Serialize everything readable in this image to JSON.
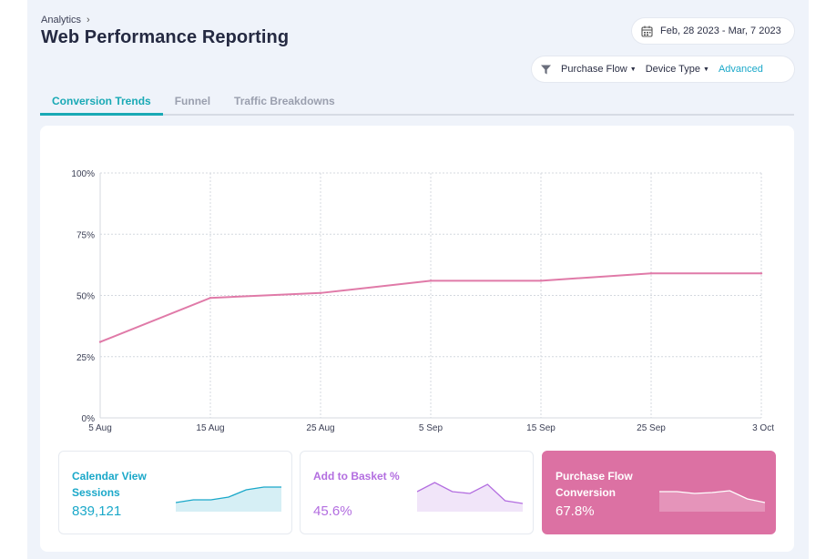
{
  "breadcrumb": {
    "section": "Analytics"
  },
  "header": {
    "title": "Web Performance Reporting"
  },
  "date_range": {
    "label": "Feb, 28 2023 - Mar, 7 2023",
    "icon": "calendar-icon"
  },
  "filters": {
    "icon": "filter-icon",
    "items": [
      {
        "label": "Purchase Flow"
      },
      {
        "label": "Device Type"
      }
    ],
    "advanced_label": "Advanced"
  },
  "tabs": [
    {
      "label": "Conversion Trends",
      "active": true
    },
    {
      "label": "Funnel",
      "active": false
    },
    {
      "label": "Traffic Breakdowns",
      "active": false
    }
  ],
  "chart_data": {
    "type": "line",
    "x": [
      "5 Aug",
      "15 Aug",
      "25 Aug",
      "5 Sep",
      "15 Sep",
      "25 Sep",
      "3 Oct"
    ],
    "y_ticks": [
      "0%",
      "25%",
      "50%",
      "75%",
      "100%"
    ],
    "ylim": [
      0,
      100
    ],
    "grid": true,
    "series": [
      {
        "values": [
          31,
          49,
          51,
          56,
          56,
          59,
          59
        ],
        "color": "#e07aa8"
      }
    ]
  },
  "kpis": [
    {
      "label": "Calendar View Sessions",
      "value": "839,121",
      "color": "#1aa8c9",
      "spark": [
        10,
        13,
        13,
        16,
        24,
        27,
        27
      ]
    },
    {
      "label": "Add to Basket %",
      "value": "45.6%",
      "color": "#b36ee0",
      "spark": [
        22,
        32,
        22,
        20,
        30,
        12,
        9
      ]
    },
    {
      "label": "Purchase Flow Conversion",
      "value": "67.8%",
      "color": "#dc71a3",
      "spark": [
        22,
        22,
        20,
        21,
        23,
        14,
        10
      ]
    }
  ]
}
